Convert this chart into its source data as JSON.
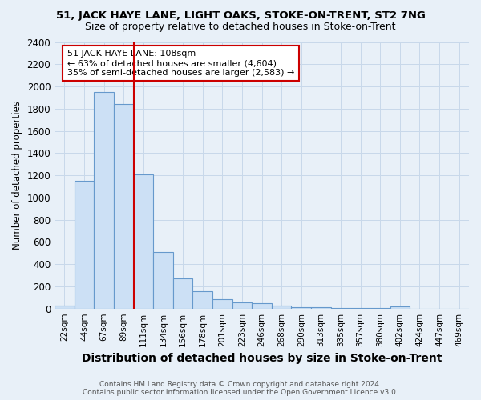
{
  "title1": "51, JACK HAYE LANE, LIGHT OAKS, STOKE-ON-TRENT, ST2 7NG",
  "title2": "Size of property relative to detached houses in Stoke-on-Trent",
  "xlabel": "Distribution of detached houses by size in Stoke-on-Trent",
  "ylabel": "Number of detached properties",
  "bin_labels": [
    "22sqm",
    "44sqm",
    "67sqm",
    "89sqm",
    "111sqm",
    "134sqm",
    "156sqm",
    "178sqm",
    "201sqm",
    "223sqm",
    "246sqm",
    "268sqm",
    "290sqm",
    "313sqm",
    "335sqm",
    "357sqm",
    "380sqm",
    "402sqm",
    "424sqm",
    "447sqm",
    "469sqm"
  ],
  "bar_values": [
    25,
    1150,
    1950,
    1840,
    1210,
    510,
    270,
    155,
    85,
    55,
    45,
    25,
    15,
    12,
    5,
    5,
    5,
    20,
    0,
    0,
    0
  ],
  "bar_color": "#cce0f5",
  "bar_edge_color": "#6699cc",
  "grid_color": "#c8d8ea",
  "annotation_text": "51 JACK HAYE LANE: 108sqm\n← 63% of detached houses are smaller (4,604)\n35% of semi-detached houses are larger (2,583) →",
  "annotation_box_color": "#ffffff",
  "annotation_border_color": "#cc0000",
  "red_line_bar_index": 4,
  "ylim": [
    0,
    2400
  ],
  "yticks": [
    0,
    200,
    400,
    600,
    800,
    1000,
    1200,
    1400,
    1600,
    1800,
    2000,
    2200,
    2400
  ],
  "footer_line1": "Contains HM Land Registry data © Crown copyright and database right 2024.",
  "footer_line2": "Contains public sector information licensed under the Open Government Licence v3.0.",
  "bg_color": "#e8f0f8",
  "title1_fontsize": 9.5,
  "title2_fontsize": 9.0,
  "xlabel_fontsize": 10.0,
  "ylabel_fontsize": 8.5,
  "xtick_fontsize": 7.5,
  "ytick_fontsize": 8.5,
  "footer_fontsize": 6.5,
  "ann_fontsize": 8.0
}
